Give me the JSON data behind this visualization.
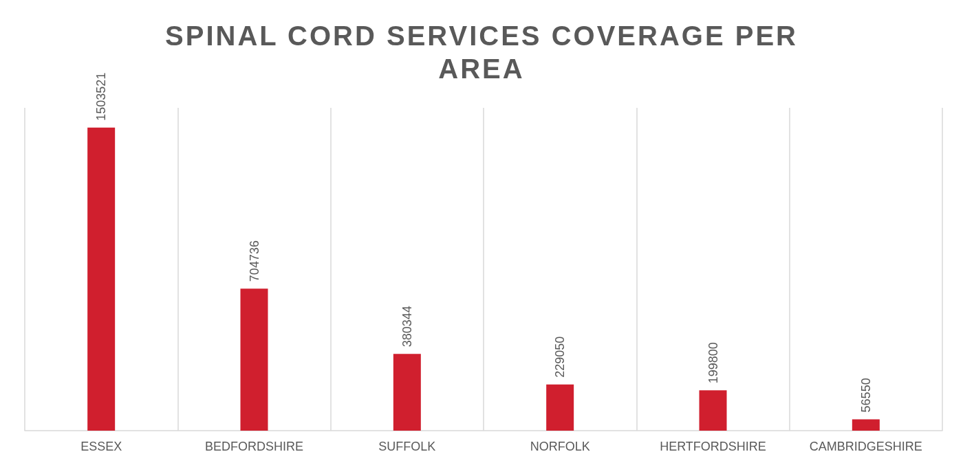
{
  "chart_data": {
    "type": "bar",
    "title": "SPINAL CORD SERVICES COVERAGE PER AREA",
    "categories": [
      "ESSEX",
      "BEDFORDSHIRE",
      "SUFFOLK",
      "NORFOLK",
      "HERTFORDSHIRE",
      "CAMBRIDGESHIRE"
    ],
    "values": [
      1503521,
      704736,
      380344,
      229050,
      199800,
      56550
    ],
    "color": "#d01f2e",
    "data_labels": true,
    "grid": "x"
  }
}
